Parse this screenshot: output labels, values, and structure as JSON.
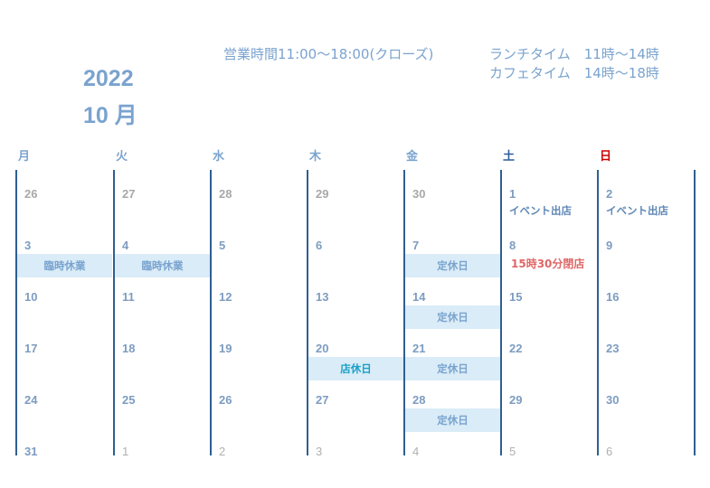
{
  "header": {
    "hours": "営業時間11:00～18:00(クローズ)",
    "lunch": "ランチタイム　11時～14時",
    "cafe": "カフェタイム　14時～18時",
    "year": "2022",
    "month": "10 月"
  },
  "colors": {
    "accent": "#7aa3cf",
    "saturday": "#2e5d9a",
    "sunday": "#cc0000",
    "band": "#d9ecf7",
    "divider": "#2f5f93",
    "holiday_text": "#1aa0c8",
    "notice_red": "#e06666"
  },
  "weekdays": [
    "月",
    "火",
    "水",
    "木",
    "金",
    "土",
    "日"
  ],
  "weeks": [
    [
      {
        "day": "26",
        "state": "prev"
      },
      {
        "day": "27",
        "state": "prev"
      },
      {
        "day": "28",
        "state": "prev"
      },
      {
        "day": "29",
        "state": "prev"
      },
      {
        "day": "30",
        "state": "prev"
      },
      {
        "day": "1",
        "event": "イベント出店",
        "style": "below"
      },
      {
        "day": "2",
        "event": "イベント出店",
        "style": "below"
      }
    ],
    [
      {
        "day": "3",
        "event": "臨時休業",
        "style": "band"
      },
      {
        "day": "4",
        "event": "臨時休業",
        "style": "band"
      },
      {
        "day": "5"
      },
      {
        "day": "6"
      },
      {
        "day": "7",
        "event": "定休日",
        "style": "band"
      },
      {
        "day": "8",
        "event": "15時30分閉店",
        "style": "red"
      },
      {
        "day": "9"
      }
    ],
    [
      {
        "day": "10"
      },
      {
        "day": "11"
      },
      {
        "day": "12"
      },
      {
        "day": "13"
      },
      {
        "day": "14",
        "event": "定休日",
        "style": "band"
      },
      {
        "day": "15"
      },
      {
        "day": "16"
      }
    ],
    [
      {
        "day": "17"
      },
      {
        "day": "18"
      },
      {
        "day": "19"
      },
      {
        "day": "20",
        "event": "店休日",
        "style": "band-teal"
      },
      {
        "day": "21",
        "event": "定休日",
        "style": "band"
      },
      {
        "day": "22"
      },
      {
        "day": "23"
      }
    ],
    [
      {
        "day": "24"
      },
      {
        "day": "25"
      },
      {
        "day": "26"
      },
      {
        "day": "27"
      },
      {
        "day": "28",
        "event": "定休日",
        "style": "band"
      },
      {
        "day": "29"
      },
      {
        "day": "30"
      }
    ],
    [
      {
        "day": "31"
      },
      {
        "day": "1",
        "state": "next"
      },
      {
        "day": "2",
        "state": "next"
      },
      {
        "day": "3",
        "state": "next"
      },
      {
        "day": "4",
        "state": "next"
      },
      {
        "day": "5",
        "state": "next"
      },
      {
        "day": "6",
        "state": "next"
      }
    ]
  ]
}
